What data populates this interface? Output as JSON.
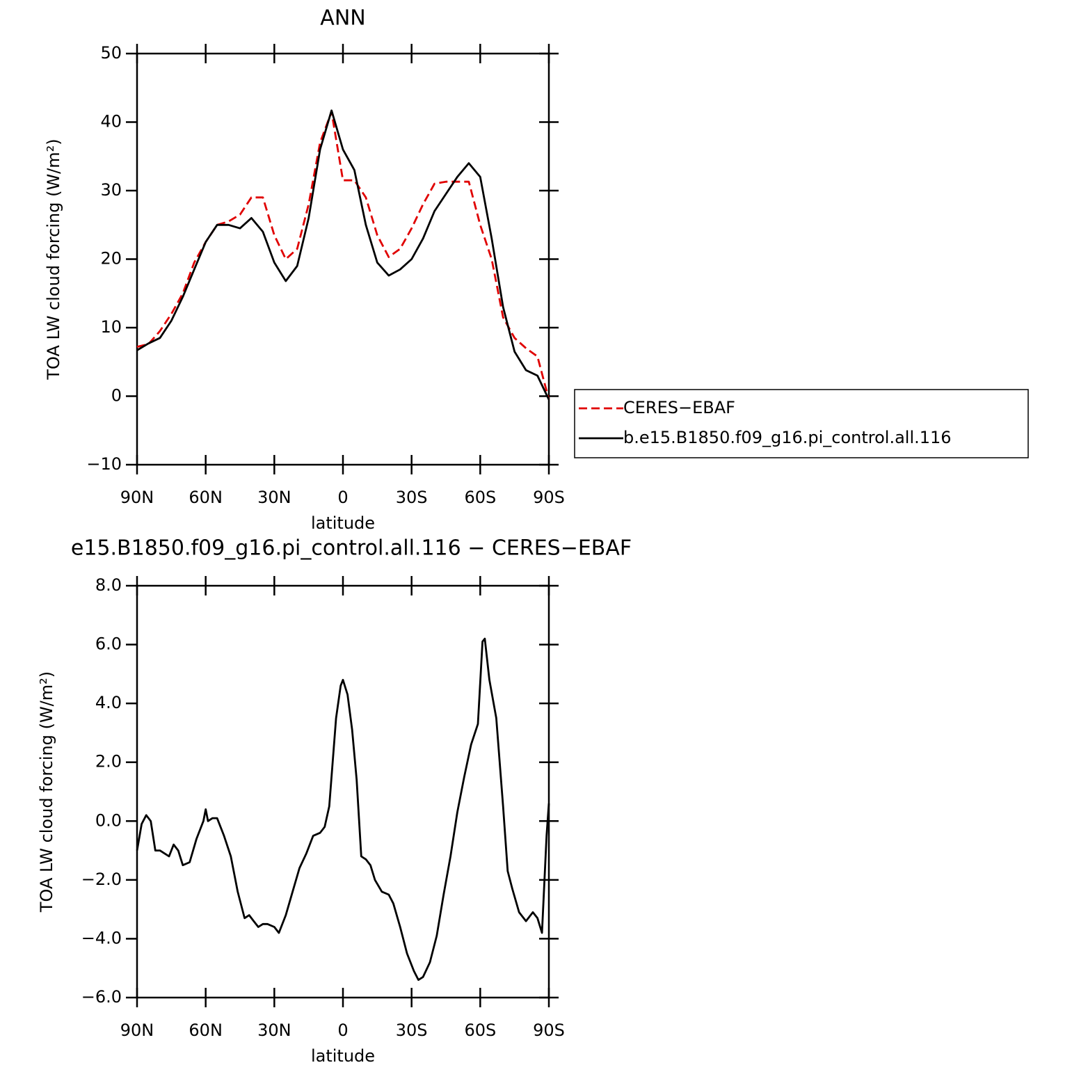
{
  "chart_data": [
    {
      "type": "line",
      "title": "ANN",
      "xlabel": "latitude",
      "ylabel": "TOA LW cloud forcing (W/m²)",
      "xlim": [
        90,
        -90
      ],
      "ylim": [
        -10,
        50
      ],
      "xticks": [
        {
          "value": 90,
          "label": "90N"
        },
        {
          "value": 60,
          "label": "60N"
        },
        {
          "value": 30,
          "label": "30N"
        },
        0,
        {
          "value": -30,
          "label": "30S"
        },
        {
          "value": -60,
          "label": "60S"
        },
        {
          "value": -90,
          "label": "90S"
        }
      ],
      "yticks": [
        {
          "value": -10,
          "label": "−10"
        },
        0,
        10,
        20,
        30,
        40,
        50
      ],
      "legend": "right",
      "x": [
        90,
        85,
        80,
        75,
        70,
        65,
        60,
        55,
        50,
        45,
        40,
        35,
        30,
        25,
        20,
        15,
        10,
        5,
        0,
        -5,
        -10,
        -15,
        -20,
        -25,
        -30,
        -35,
        -40,
        -45,
        -50,
        -55,
        -60,
        -65,
        -70,
        -75,
        -80,
        -85,
        -90
      ],
      "series": [
        {
          "name": "CERES−EBAF",
          "color": "#e00000",
          "style": "dashed",
          "values": [
            7.2,
            7.6,
            9.5,
            12,
            15,
            19.5,
            22.5,
            25,
            25.5,
            26.5,
            29,
            29,
            23.5,
            20,
            21.5,
            28,
            37,
            41.5,
            31.5,
            31.5,
            29,
            23.5,
            20.3,
            21.5,
            24.5,
            28,
            31,
            31.3,
            31.3,
            31.3,
            25,
            20,
            11.5,
            8.5,
            7,
            5.8,
            -0.5
          ]
        },
        {
          "name": "b.e15.B1850.f09_g16.pi_control.all.116",
          "color": "#000000",
          "style": "solid",
          "values": [
            6.7,
            7.7,
            8.5,
            11,
            14.5,
            18.5,
            22.5,
            25,
            25,
            24.5,
            26,
            24,
            19.5,
            16.8,
            19,
            26,
            36,
            41.7,
            36,
            33,
            25,
            19.5,
            17.6,
            18.5,
            20,
            23,
            27,
            29.5,
            32,
            34,
            32,
            23,
            13,
            6.5,
            3.8,
            3,
            -0.5
          ]
        }
      ]
    },
    {
      "type": "line",
      "title": "e15.B1850.f09_g16.pi_control.all.116 − CERES−EBAF",
      "xlabel": "latitude",
      "ylabel": "TOA LW cloud forcing (W/m²)",
      "xlim": [
        90,
        -90
      ],
      "ylim": [
        -6,
        8
      ],
      "xticks": [
        {
          "value": 90,
          "label": "90N"
        },
        {
          "value": 60,
          "label": "60N"
        },
        {
          "value": 30,
          "label": "30N"
        },
        0,
        {
          "value": -30,
          "label": "30S"
        },
        {
          "value": -60,
          "label": "60S"
        },
        {
          "value": -90,
          "label": "90S"
        }
      ],
      "yticks": [
        {
          "value": -6,
          "label": "−6.0"
        },
        {
          "value": -4,
          "label": "−4.0"
        },
        {
          "value": -2,
          "label": "−2.0"
        },
        {
          "value": 0,
          "label": "0.0"
        },
        {
          "value": 2,
          "label": "2.0"
        },
        {
          "value": 4,
          "label": "4.0"
        },
        {
          "value": 6,
          "label": "6.0"
        },
        {
          "value": 8,
          "label": "8.0"
        }
      ],
      "x": [
        90,
        88,
        86,
        84,
        82,
        80,
        78,
        76,
        74,
        72,
        70,
        67,
        64,
        61,
        60,
        59,
        57,
        55,
        52,
        49,
        46,
        43,
        41,
        39,
        37,
        35,
        33,
        30,
        28,
        25,
        22,
        19,
        16,
        13,
        10,
        8,
        6,
        3,
        1,
        0,
        -2,
        -4,
        -6,
        -8,
        -10,
        -12,
        -14,
        -17,
        -20,
        -22,
        -25,
        -28,
        -31,
        -33,
        -35,
        -38,
        -41,
        -44,
        -47,
        -50,
        -53,
        -56,
        -59,
        -61,
        -62,
        -64,
        -67,
        -70,
        -72,
        -74,
        -77,
        -80,
        -83,
        -85,
        -87,
        -89,
        -90
      ],
      "series": [
        {
          "color": "#000000",
          "style": "solid",
          "values": [
            -1.0,
            -0.1,
            0.2,
            0.0,
            -1.0,
            -1.0,
            -1.1,
            -1.2,
            -0.8,
            -1.0,
            -1.5,
            -1.4,
            -0.6,
            0.0,
            0.4,
            0.0,
            0.1,
            0.1,
            -0.5,
            -1.2,
            -2.4,
            -3.3,
            -3.2,
            -3.4,
            -3.6,
            -3.5,
            -3.5,
            -3.6,
            -3.8,
            -3.2,
            -2.4,
            -1.6,
            -1.1,
            -0.5,
            -0.4,
            -0.2,
            0.5,
            3.5,
            4.6,
            4.8,
            4.3,
            3.1,
            1.4,
            -1.2,
            -1.3,
            -1.5,
            -2.0,
            -2.4,
            -2.5,
            -2.8,
            -3.6,
            -4.5,
            -5.1,
            -5.4,
            -5.3,
            -4.8,
            -3.9,
            -2.5,
            -1.2,
            0.3,
            1.5,
            2.6,
            3.3,
            6.1,
            6.2,
            4.8,
            3.5,
            0.5,
            -1.7,
            -2.3,
            -3.1,
            -3.4,
            -3.1,
            -3.3,
            -3.8,
            -0.5,
            0.6
          ]
        }
      ]
    }
  ]
}
